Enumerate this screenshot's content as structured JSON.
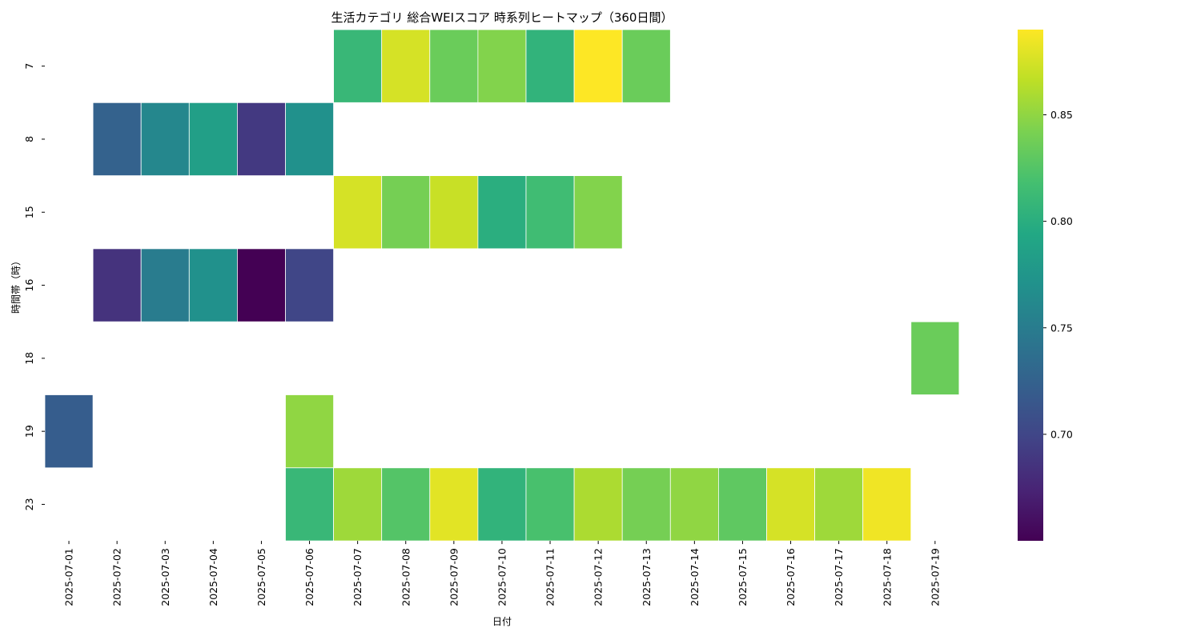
{
  "chart_data": {
    "type": "heatmap",
    "title": "生活カテゴリ 総合WEIスコア 時系列ヒートマップ（360日間）",
    "xlabel": "日付",
    "ylabel": "時間帯（時）",
    "colormap": "viridis",
    "x": [
      "2025-07-01",
      "2025-07-02",
      "2025-07-03",
      "2025-07-04",
      "2025-07-05",
      "2025-07-06",
      "2025-07-07",
      "2025-07-08",
      "2025-07-09",
      "2025-07-10",
      "2025-07-11",
      "2025-07-12",
      "2025-07-13",
      "2025-07-14",
      "2025-07-15",
      "2025-07-16",
      "2025-07-17",
      "2025-07-18",
      "2025-07-19"
    ],
    "y": [
      "7",
      "8",
      "15",
      "16",
      "18",
      "19",
      "23"
    ],
    "values": [
      [
        null,
        null,
        null,
        null,
        null,
        null,
        0.81,
        0.875,
        0.835,
        0.845,
        0.805,
        0.89,
        0.835,
        null,
        null,
        null,
        null,
        null,
        null
      ],
      [
        null,
        0.725,
        0.76,
        0.785,
        0.69,
        0.77,
        null,
        null,
        null,
        null,
        null,
        null,
        null,
        null,
        null,
        null,
        null,
        null,
        null
      ],
      [
        null,
        null,
        null,
        null,
        null,
        null,
        0.875,
        0.84,
        0.87,
        0.8,
        0.815,
        0.845,
        null,
        null,
        null,
        null,
        null,
        null,
        null
      ],
      [
        null,
        0.685,
        0.75,
        0.77,
        0.65,
        0.7,
        null,
        null,
        null,
        null,
        null,
        null,
        null,
        null,
        null,
        null,
        null,
        null,
        null
      ],
      [
        null,
        null,
        null,
        null,
        null,
        null,
        null,
        null,
        null,
        null,
        null,
        null,
        null,
        null,
        null,
        null,
        null,
        null,
        0.835
      ],
      [
        0.72,
        null,
        null,
        null,
        null,
        0.85,
        null,
        null,
        null,
        null,
        null,
        null,
        null,
        null,
        null,
        null,
        null,
        null,
        null
      ],
      [
        null,
        null,
        null,
        null,
        null,
        0.81,
        0.855,
        0.825,
        0.88,
        0.805,
        0.82,
        0.86,
        0.84,
        0.85,
        0.83,
        0.875,
        0.855,
        0.885,
        null
      ]
    ],
    "colorbar": {
      "vmin": 0.65,
      "vmax": 0.89,
      "ticks": [
        0.7,
        0.75,
        0.8,
        0.85
      ],
      "tick_labels": [
        "0.70",
        "0.75",
        "0.80",
        "0.85"
      ]
    },
    "grid": false,
    "legend": "colorbar-right"
  }
}
